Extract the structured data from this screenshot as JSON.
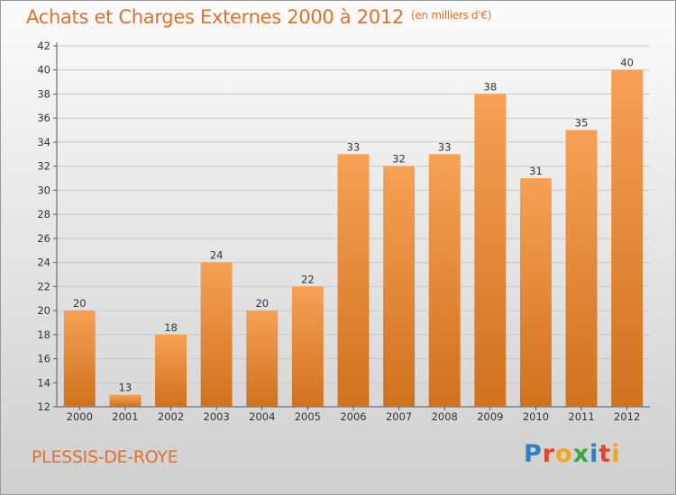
{
  "header": {
    "title": "Achats et Charges Externes 2000 à 2012",
    "subtitle": "(en milliers d'€)"
  },
  "footer": {
    "commune": "PLESSIS-DE-ROYE",
    "logo": {
      "letters": [
        "P",
        "r",
        "o",
        "x",
        "i",
        "t",
        "i"
      ],
      "colors": [
        "#2f7fc1",
        "#e8442a",
        "#f2a81d",
        "#3aa83a",
        "#2f7fc1",
        "#e8442a",
        "#f2a81d"
      ]
    }
  },
  "colors": {
    "title": "#e0702c",
    "bar_top": "#f6a155",
    "bar_bottom": "#d0711e",
    "grid": "#c9c9c9"
  },
  "chart_data": {
    "type": "bar",
    "categories": [
      "2000",
      "2001",
      "2002",
      "2003",
      "2004",
      "2005",
      "2006",
      "2007",
      "2008",
      "2009",
      "2010",
      "2011",
      "2012"
    ],
    "values": [
      20,
      13,
      18,
      24,
      20,
      22,
      33,
      32,
      33,
      38,
      31,
      35,
      40
    ],
    "ylim": [
      12,
      42
    ],
    "yticks": [
      12,
      14,
      16,
      18,
      20,
      22,
      24,
      26,
      28,
      30,
      32,
      34,
      36,
      38,
      40,
      42
    ],
    "grid": true
  }
}
